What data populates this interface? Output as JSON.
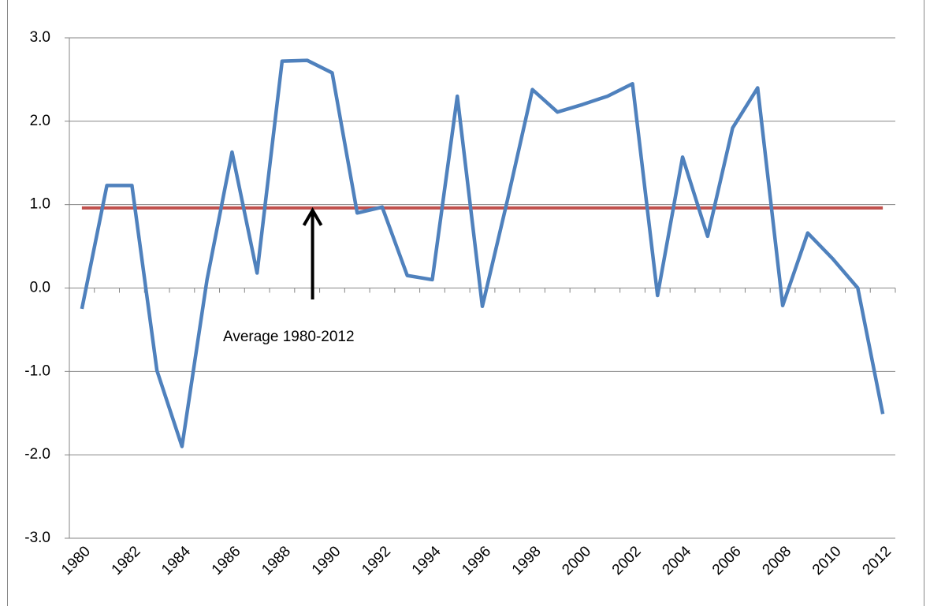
{
  "chart_data": {
    "type": "line",
    "categories": [
      "1980",
      null,
      "1982",
      null,
      "1984",
      null,
      "1986",
      null,
      "1988",
      null,
      "1990",
      null,
      "1992",
      null,
      "1994",
      null,
      "1996",
      null,
      "1998",
      null,
      "2000",
      null,
      "2002",
      null,
      "2004",
      null,
      "2006",
      null,
      "2008",
      null,
      "2010",
      null,
      "2012"
    ],
    "values": [
      -0.25,
      1.23,
      1.23,
      -0.99,
      -1.9,
      0.1,
      1.63,
      0.18,
      2.72,
      2.73,
      2.58,
      0.9,
      0.97,
      0.15,
      0.1,
      2.3,
      -0.22,
      1.05,
      2.38,
      2.11,
      2.2,
      2.3,
      2.45,
      -0.09,
      1.57,
      0.62,
      1.92,
      2.4,
      -0.21,
      0.66,
      0.35,
      0.0,
      -1.51
    ],
    "color": "#4f81bd",
    "average": {
      "value": 0.96,
      "color": "#c0504d",
      "label": "Average 1980-2012"
    },
    "ylim": [
      -3,
      3
    ],
    "yticks": [
      {
        "value": -3,
        "label": "-3.0"
      },
      {
        "value": -2,
        "label": "-2.0"
      },
      {
        "value": -1,
        "label": "-1.0"
      },
      {
        "value": 0,
        "label": "0.0"
      },
      {
        "value": 1,
        "label": "1.0"
      },
      {
        "value": 2,
        "label": "2.0"
      },
      {
        "value": 3,
        "label": "3.0"
      }
    ],
    "grid": true
  }
}
